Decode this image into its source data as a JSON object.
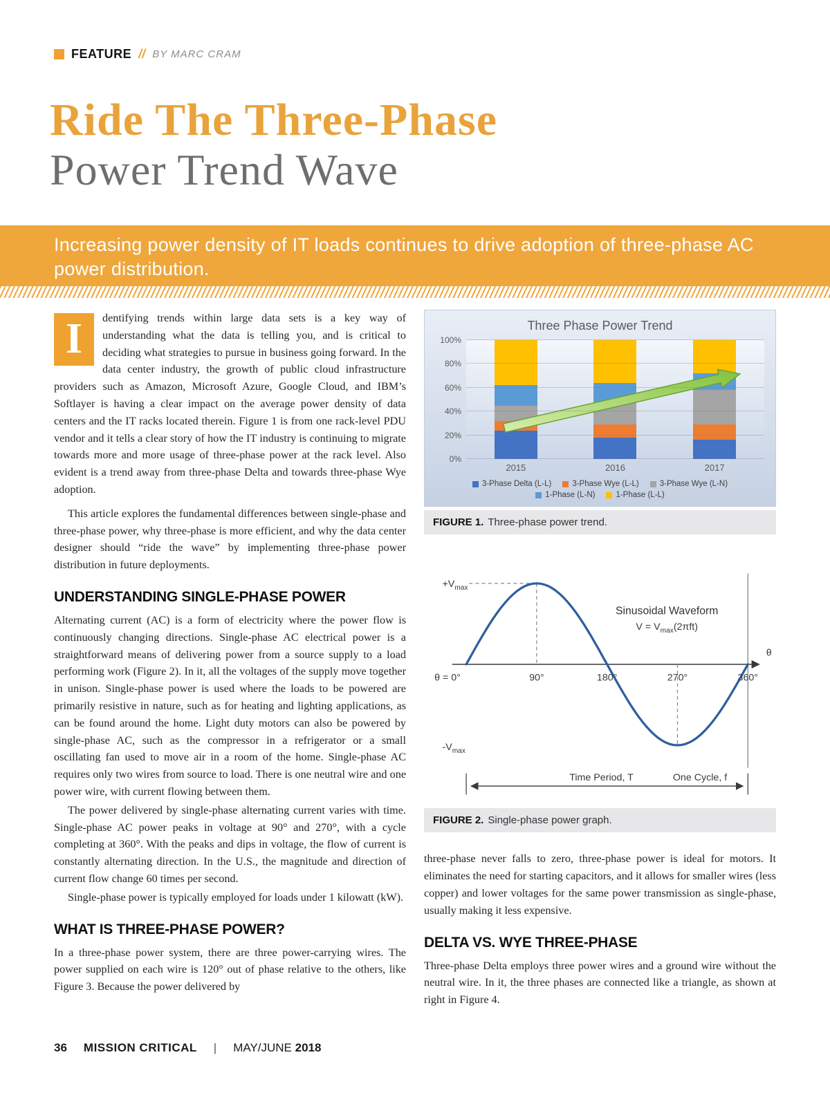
{
  "header": {
    "feature_label": "FEATURE",
    "separator": "//",
    "byline": "BY MARC CRAM",
    "title_line1": "Ride The Three-Phase",
    "title_line2": "Power Trend Wave",
    "deck": "Increasing power density of IT loads continues to drive adoption of three-phase AC power distribution."
  },
  "article": {
    "dropcap": "I",
    "intro": "dentifying trends within large data sets is a key way of understanding what the data is telling you, and is critical to deciding what strategies to pursue in business going forward. In the data center industry, the growth of public cloud infrastructure providers such as Amazon, Microsoft Azure, Google Cloud, and IBM’s Softlayer is having a clear impact on the average power density of data centers and the IT racks located therein. Figure 1 is from one rack-level PDU vendor and it tells a clear story of how the IT industry is continuing to migrate towards more and more usage of three-phase power at the rack level. Also evident is a trend away from three-phase Delta and towards three-phase Wye adoption.",
    "para2": "This article explores the fundamental differences between single-phase and three-phase power, why three-phase is more efficient, and why the data center designer should “ride the wave” by implementing three-phase power distribution in future deployments.",
    "s1": {
      "heading": "UNDERSTANDING SINGLE-PHASE POWER",
      "p1": "Alternating current (AC) is a form of electricity where the power flow is continuously changing directions. Single-phase AC electrical power is a straightforward means of delivering power from a source supply to a load performing work (Figure 2). In it, all the voltages of the supply move together in unison. Single-phase power is used where the loads to be powered are primarily resistive in nature, such as for heating and lighting applications, as can be found around the home. Light duty motors can also be powered by single-phase AC, such as the compressor in a refrigerator or a small oscillating fan used to move air in a room of the home. Single-phase AC requires only two wires from source to load. There is one neutral wire and one power wire, with current flowing between them.",
      "p2": "The power delivered by single-phase alternating current varies with time. Single-phase AC power peaks in voltage at 90° and 270°, with a cycle completing at 360°. With the peaks and dips in voltage, the flow of current is constantly alternating direction. In the U.S., the magnitude and direction of current flow change 60 times per second.",
      "p3": "Single-phase power is typically employed for loads under 1 kilowatt (kW)."
    },
    "s2": {
      "heading": "WHAT IS THREE-PHASE POWER?",
      "p1": "In a three-phase power system, there are three power-carrying wires. The power supplied on each wire is 120° out of phase relative to the others, like Figure 3. Because the power delivered by",
      "p2": "three-phase never falls to zero, three-phase power is ideal for motors. It eliminates the need for starting capacitors, and it allows for smaller wires (less copper) and lower voltages for the same power transmission as single-phase, usually making it less expensive."
    },
    "s3": {
      "heading": "DELTA VS. WYE THREE-PHASE",
      "p1": "Three-phase Delta employs three power wires and a ground wire without the neutral wire. In it, the three phases are connected like a triangle, as shown at right in Figure 4."
    }
  },
  "figures": {
    "fig1": {
      "label": "FIGURE 1.",
      "caption": "Three-phase power trend."
    },
    "fig2": {
      "label": "FIGURE 2.",
      "caption": "Single-phase power graph."
    }
  },
  "footer": {
    "page": "36",
    "magazine": "MISSION CRITICAL",
    "sep": "|",
    "issue": "MAY/JUNE",
    "year": "2018"
  },
  "colors": {
    "accent_orange": "#EFA22F",
    "title_gray": "#6D6E71",
    "caption_bg": "#E7E7E9",
    "trend_arrow_green": "#8CC63F"
  },
  "chart_data": [
    {
      "type": "bar",
      "stacked": true,
      "title": "Three Phase Power Trend",
      "categories": [
        "2015",
        "2016",
        "2017"
      ],
      "series": [
        {
          "name": "3-Phase Delta (L-L)",
          "color": "#4472C4",
          "values": [
            24,
            18,
            16
          ]
        },
        {
          "name": "3-Phase Wye (L-L)",
          "color": "#ED7D31",
          "values": [
            8,
            11,
            13
          ]
        },
        {
          "name": "3-Phase Wye (L-N)",
          "color": "#A5A5A5",
          "values": [
            13,
            19,
            29
          ]
        },
        {
          "name": "1-Phase (L-N)",
          "color": "#5B9BD5",
          "values": [
            17,
            16,
            14
          ]
        },
        {
          "name": "1-Phase (L-L)",
          "color": "#FFC000",
          "values": [
            38,
            36,
            28
          ]
        }
      ],
      "y_ticks": [
        "0%",
        "20%",
        "40%",
        "60%",
        "80%",
        "100%"
      ],
      "ylim": [
        0,
        100
      ],
      "legend_position": "bottom",
      "annotation": "green trend arrow rising from 2015 toward 2017 highlighting growth of three-phase adoption"
    },
    {
      "type": "line",
      "title": "Sinusoidal Waveform",
      "equation": {
        "prefix": "V = V",
        "sub": "max",
        "suffix": "(2πft)"
      },
      "x": [
        0,
        90,
        180,
        270,
        360
      ],
      "y": [
        0,
        1,
        0,
        -1,
        0
      ],
      "x_ticks": [
        "θ = 0°",
        "90°",
        "180°",
        "270°",
        "360°"
      ],
      "xlabel": "θ",
      "ylabels": {
        "plus_prefix": "+V",
        "minus_prefix": "-V",
        "sub": "max"
      },
      "bottom_labels": {
        "period": "Time Period, T",
        "cycle": "One Cycle, f"
      },
      "line_color": "#2E5F9E"
    }
  ]
}
